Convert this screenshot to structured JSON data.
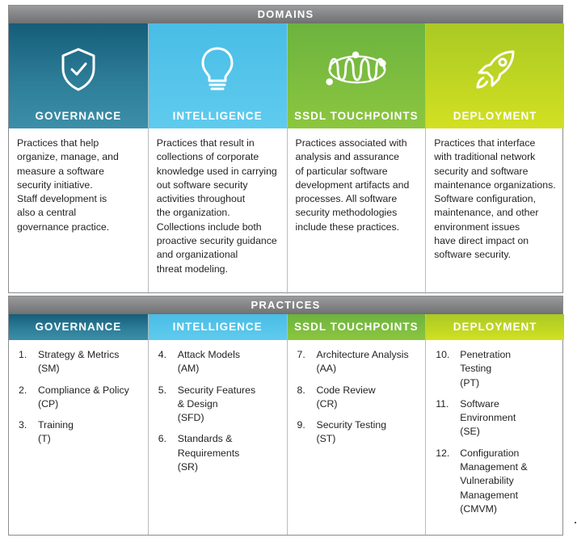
{
  "domains_header": "DOMAINS",
  "practices_header": "PRACTICES",
  "colors": {
    "governance": "#1f6d8a",
    "intelligence": "#56c5eb",
    "ssdl": "#7dbc41",
    "deployment": "#c4d82e",
    "band": "#808183"
  },
  "domains": [
    {
      "title": "GOVERNANCE",
      "icon": "shield-check-icon",
      "description": "Practices that help\norganize, manage, and\nmeasure a software\nsecurity initiative.\nStaff development is\nalso a central\ngovernance practice."
    },
    {
      "title": "INTELLIGENCE",
      "icon": "lightbulb-icon",
      "description": "Practices that result in\ncollections of corporate\nknowledge used in carrying\nout software security\nactivities throughout\nthe organization.\nCollections include both\nproactive security guidance\nand organizational\nthreat modeling."
    },
    {
      "title": "SSDL TOUCHPOINTS",
      "icon": "coil-loop-icon",
      "description": "Practices associated with\nanalysis and assurance\nof particular software\ndevelopment artifacts and\nprocesses. All software\nsecurity methodologies\ninclude these practices."
    },
    {
      "title": "DEPLOYMENT",
      "icon": "rocket-icon",
      "description": "Practices that interface\nwith traditional network\nsecurity and software\nmaintenance organizations.\nSoftware configuration,\nmaintenance, and other\nenvironment issues\nhave direct impact on\nsoftware security."
    }
  ],
  "practices": [
    {
      "title": "GOVERNANCE",
      "items": [
        {
          "num": "1.",
          "text": "Strategy & Metrics\n(SM)"
        },
        {
          "num": "2.",
          "text": "Compliance & Policy\n(CP)"
        },
        {
          "num": "3.",
          "text": "Training\n(T)"
        }
      ]
    },
    {
      "title": "INTELLIGENCE",
      "items": [
        {
          "num": "4.",
          "text": "Attack Models\n(AM)"
        },
        {
          "num": "5.",
          "text": "Security Features\n& Design\n (SFD)"
        },
        {
          "num": "6.",
          "text": "Standards &\nRequirements\n(SR)"
        }
      ]
    },
    {
      "title": "SSDL TOUCHPOINTS",
      "items": [
        {
          "num": "7.",
          "text": "Architecture Analysis\n(AA)"
        },
        {
          "num": "8.",
          "text": "Code Review\n(CR)"
        },
        {
          "num": "9.",
          "text": "Security Testing\n(ST)"
        }
      ]
    },
    {
      "title": "DEPLOYMENT",
      "items": [
        {
          "num": "10.",
          "text": "Penetration\nTesting\n(PT)"
        },
        {
          "num": "11.",
          "text": "Software\nEnvironment\n (SE)"
        },
        {
          "num": "12.",
          "text": "Configuration\nManagement &\nVulnerability\nManagement\n(CMVM)"
        }
      ]
    }
  ]
}
